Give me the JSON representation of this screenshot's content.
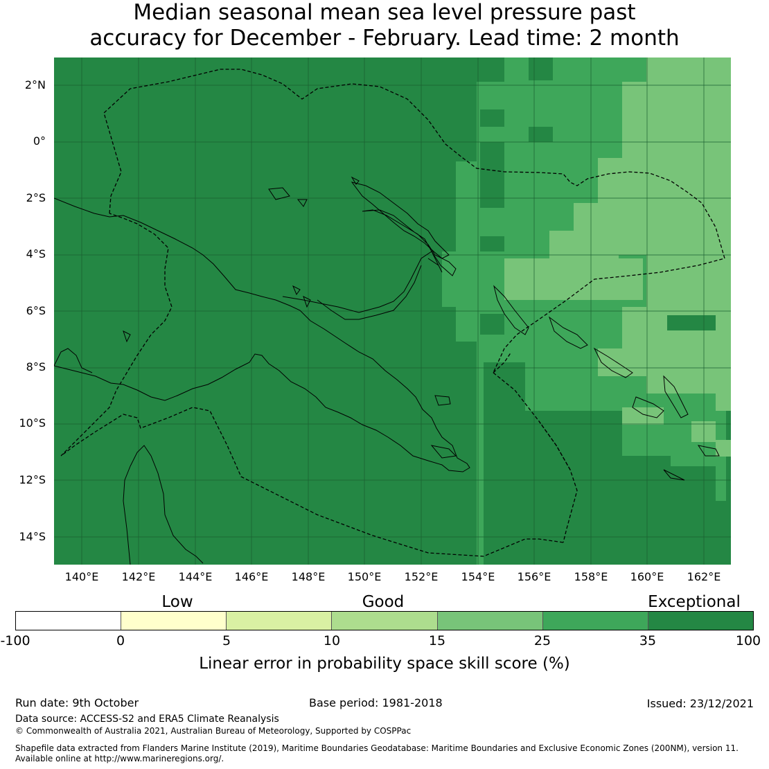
{
  "title_line1": "Median seasonal mean sea level pressure past",
  "title_line2": "accuracy for December - February. Lead time: 2 month",
  "map": {
    "lat_labels": [
      "2°N",
      "0°",
      "2°S",
      "4°S",
      "6°S",
      "8°S",
      "10°S",
      "12°S",
      "14°S"
    ],
    "lon_labels": [
      "140°E",
      "142°E",
      "144°E",
      "146°E",
      "148°E",
      "150°E",
      "152°E",
      "154°E",
      "156°E",
      "158°E",
      "160°E",
      "162°E"
    ],
    "colors": {
      "exceptional": "#248744",
      "band_25_35": "#3ea75a",
      "band_15_25": "#78c479",
      "band_10_15": "#addd8e",
      "band_5_10": "#d9f0a3",
      "band_0_5": "#ffffcc",
      "band_neg": "#ffffff"
    }
  },
  "legend": {
    "categories": [
      "Low",
      "Good",
      "Exceptional"
    ],
    "ticks": [
      "-100",
      "0",
      "5",
      "10",
      "15",
      "25",
      "35",
      "100"
    ],
    "colors": [
      "#ffffff",
      "#ffffcc",
      "#d9f0a3",
      "#addd8e",
      "#78c479",
      "#3ea75a",
      "#248744"
    ],
    "label": "Linear error in probability space skill score (%)"
  },
  "footer": {
    "run_date": "Run date: 9th October",
    "base_period": "Base period: 1981-2018",
    "issued": "Issued: 23/12/2021",
    "data_source": "Data source: ACCESS-S2 and ERA5 Climate Reanalysis",
    "copyright": "© Commonwealth of Australia 2021, Australian Bureau of Meteorology, Supported by COSPPac",
    "shapefile_line1": "Shapefile data extracted from Flanders Marine Institute (2019), Maritime Boundaries Geodatabase: Maritime Boundaries and Exclusive Economic Zones (200NM), version 11.",
    "shapefile_line2": "Available online at http://www.marineregions.org/."
  }
}
